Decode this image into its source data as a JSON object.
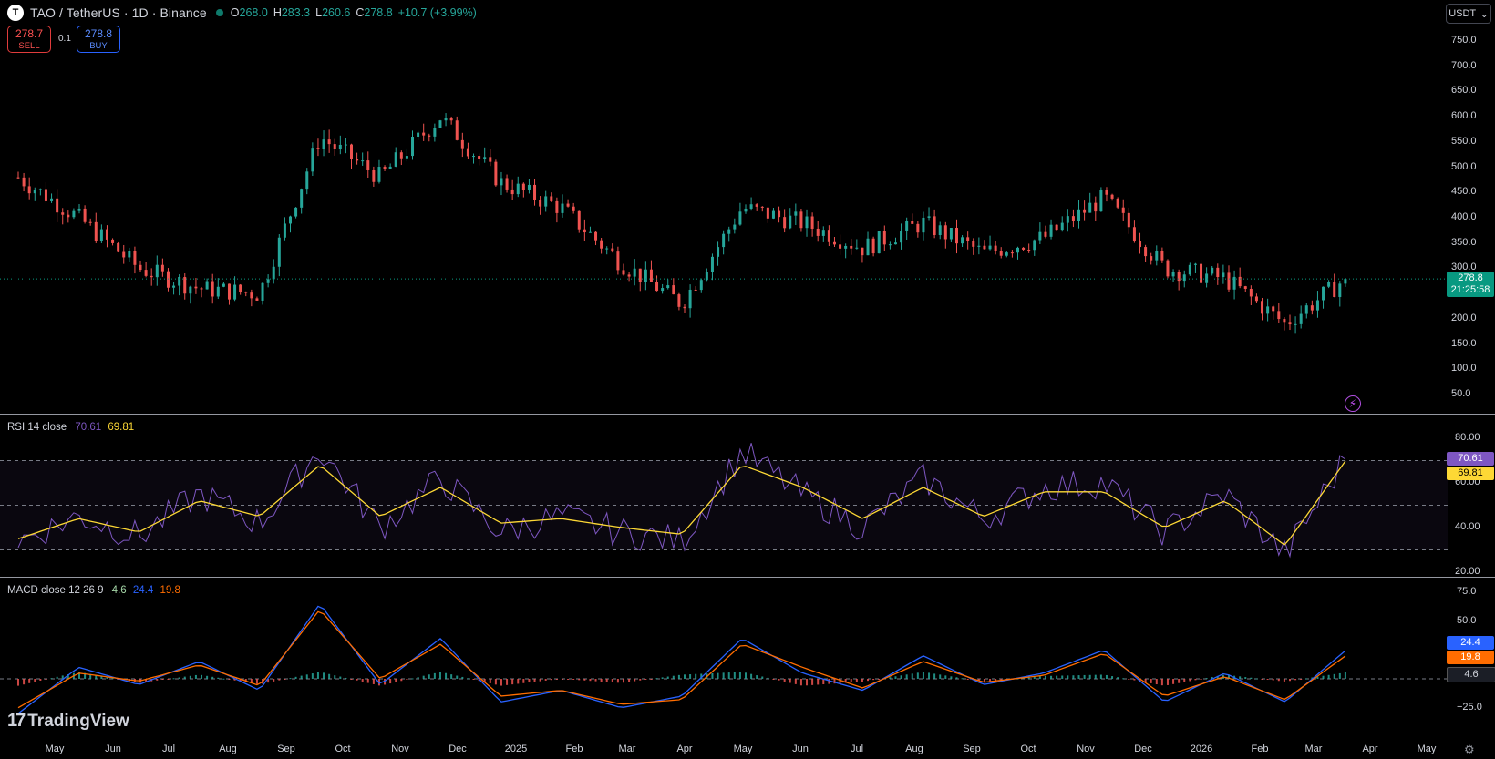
{
  "header": {
    "symbol_icon": "T",
    "title": "TAO / TetherUS · 1D · Binance",
    "o_label": "O",
    "o": "268.0",
    "h_label": "H",
    "h": "283.3",
    "l_label": "L",
    "l": "260.6",
    "c_label": "C",
    "c": "278.8",
    "change": "+10.7 (+3.99%)"
  },
  "trade": {
    "sell_price": "278.7",
    "sell_label": "SELL",
    "spread": "0.1",
    "buy_price": "278.8",
    "buy_label": "BUY"
  },
  "currency_button": {
    "label": "USDT",
    "icon": "chevron-down-icon"
  },
  "price_axis": {
    "ticks": [
      "750.0",
      "700.0",
      "650.0",
      "600.0",
      "550.0",
      "500.0",
      "450.0",
      "400.0",
      "350.0",
      "300.0",
      "250.0",
      "200.0",
      "150.0",
      "100.0",
      "50.0"
    ],
    "last_price": "278.8",
    "countdown": "21:25:58"
  },
  "rsi": {
    "legend": "RSI 14 close",
    "value": "70.61",
    "ma_value": "69.81",
    "ticks": [
      "80.00",
      "60.00",
      "40.00",
      "20.00"
    ],
    "label_value": "70.61",
    "label_ma": "69.81"
  },
  "macd": {
    "legend": "MACD close 12 26 9",
    "hist": "4.6",
    "macd": "24.4",
    "signal": "19.8",
    "ticks": [
      "75.0",
      "50.0",
      "−25.0"
    ],
    "label_macd": "24.4",
    "label_signal": "19.8",
    "label_hist": "4.6"
  },
  "time_axis": [
    "May",
    "Jun",
    "Jul",
    "Aug",
    "Sep",
    "Oct",
    "Nov",
    "Dec",
    "2025",
    "Feb",
    "Mar",
    "Apr",
    "May",
    "Jun",
    "Jul",
    "Aug",
    "Sep",
    "Oct",
    "Nov",
    "Dec",
    "2026",
    "Feb",
    "Mar",
    "Apr",
    "May"
  ],
  "branding": {
    "name": "TradingView"
  },
  "colors": {
    "up": "#26a69a",
    "down": "#ef5350",
    "rsi": "#7e57c2",
    "rsi_ma": "#fdd835",
    "macd": "#2962ff",
    "signal": "#ff6d00",
    "background": "#000000"
  },
  "chart_data": [
    {
      "type": "candlestick",
      "title": "TAO / TetherUS · 1D · Binance",
      "ylim": [
        0,
        780
      ],
      "x": [
        "2024-05",
        "2024-06",
        "2024-07",
        "2024-08",
        "2024-09",
        "2024-10",
        "2024-11",
        "2024-12",
        "2025-01",
        "2025-02",
        "2025-03",
        "2025-04",
        "2025-05",
        "2025-06",
        "2025-07",
        "2025-08",
        "2025-09",
        "2025-10",
        "2025-11",
        "2025-12",
        "2026-01",
        "2026-02",
        "2026-03"
      ],
      "close": [
        480,
        400,
        300,
        260,
        250,
        560,
        480,
        600,
        470,
        420,
        310,
        230,
        420,
        390,
        340,
        390,
        330,
        360,
        440,
        300,
        280,
        190,
        278.8
      ]
    },
    {
      "type": "line",
      "title": "RSI 14 close",
      "ylim": [
        20,
        85
      ],
      "x": [
        "2024-05",
        "2024-06",
        "2024-07",
        "2024-08",
        "2024-09",
        "2024-10",
        "2024-11",
        "2024-12",
        "2025-01",
        "2025-02",
        "2025-03",
        "2025-04",
        "2025-05",
        "2025-06",
        "2025-07",
        "2025-08",
        "2025-09",
        "2025-10",
        "2025-11",
        "2025-12",
        "2026-01",
        "2026-02",
        "2026-03"
      ],
      "series": [
        {
          "name": "RSI",
          "values": [
            34,
            45,
            36,
            55,
            42,
            75,
            40,
            62,
            38,
            45,
            38,
            34,
            74,
            55,
            40,
            62,
            44,
            58,
            60,
            38,
            55,
            28,
            70.61
          ]
        },
        {
          "name": "MA",
          "values": [
            35,
            44,
            38,
            52,
            45,
            68,
            45,
            58,
            42,
            44,
            40,
            37,
            68,
            58,
            44,
            58,
            45,
            56,
            56,
            40,
            52,
            32,
            69.81
          ]
        }
      ]
    },
    {
      "type": "line",
      "title": "MACD close 12 26 9",
      "ylim": [
        -35,
        80
      ],
      "x": [
        "2024-05",
        "2024-06",
        "2024-07",
        "2024-08",
        "2024-09",
        "2024-10",
        "2024-11",
        "2024-12",
        "2025-01",
        "2025-02",
        "2025-03",
        "2025-04",
        "2025-05",
        "2025-06",
        "2025-07",
        "2025-08",
        "2025-09",
        "2025-10",
        "2025-11",
        "2025-12",
        "2026-01",
        "2026-02",
        "2026-03"
      ],
      "series": [
        {
          "name": "MACD",
          "values": [
            -30,
            10,
            -5,
            15,
            -10,
            65,
            -5,
            35,
            -20,
            -10,
            -25,
            -15,
            35,
            5,
            -10,
            20,
            -5,
            5,
            25,
            -20,
            5,
            -20,
            24.4
          ]
        },
        {
          "name": "Signal",
          "values": [
            -25,
            5,
            -2,
            12,
            -6,
            60,
            0,
            30,
            -15,
            -10,
            -22,
            -18,
            30,
            10,
            -8,
            15,
            -3,
            3,
            22,
            -15,
            2,
            -18,
            19.8
          ]
        },
        {
          "name": "Histogram",
          "values": [
            -5,
            5,
            -3,
            3,
            -4,
            5,
            -5,
            5,
            -5,
            0,
            -3,
            3,
            5,
            -5,
            -2,
            5,
            -2,
            2,
            3,
            -5,
            3,
            -2,
            4.6
          ]
        }
      ]
    }
  ]
}
